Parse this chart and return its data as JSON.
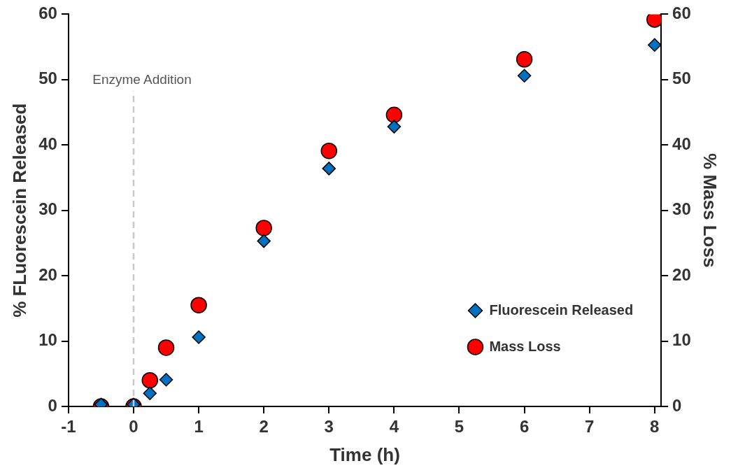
{
  "chart_data": {
    "type": "scatter",
    "xlabel": "Time (h)",
    "ylabel": "% FLuorescein Released",
    "y2label": "% Mass Loss",
    "x": [
      -0.5,
      0,
      0.25,
      0.5,
      1,
      2,
      3,
      4,
      6,
      8
    ],
    "series": [
      {
        "name": "Fluorescein Released",
        "color": "#0070c0",
        "marker": "diamond",
        "values": [
          0.3,
          0.3,
          2.0,
          4.1,
          10.6,
          25.3,
          36.4,
          42.8,
          50.6,
          55.3
        ]
      },
      {
        "name": "Mass Loss",
        "color": "#ff0000",
        "marker": "circle",
        "axis": "y2",
        "values": [
          0,
          0,
          4.0,
          9.0,
          15.5,
          27.3,
          39.1,
          44.6,
          53.1,
          59.2
        ]
      }
    ],
    "xlim": [
      -1,
      8.1
    ],
    "xticks": [
      -1,
      0,
      1,
      2,
      3,
      4,
      5,
      6,
      7,
      8
    ],
    "ylim": [
      0,
      60
    ],
    "yticks": [
      0,
      10,
      20,
      30,
      40,
      50,
      60
    ],
    "y2lim": [
      0,
      60
    ],
    "y2ticks": [
      0,
      10,
      20,
      30,
      40,
      50,
      60
    ],
    "ref_lines": [
      {
        "axis": "x",
        "value": 0,
        "label": "Enzyme Addition",
        "color": "#c8c8c8",
        "line_style": "dashed"
      }
    ],
    "legend": "bottom right",
    "grid": false
  }
}
